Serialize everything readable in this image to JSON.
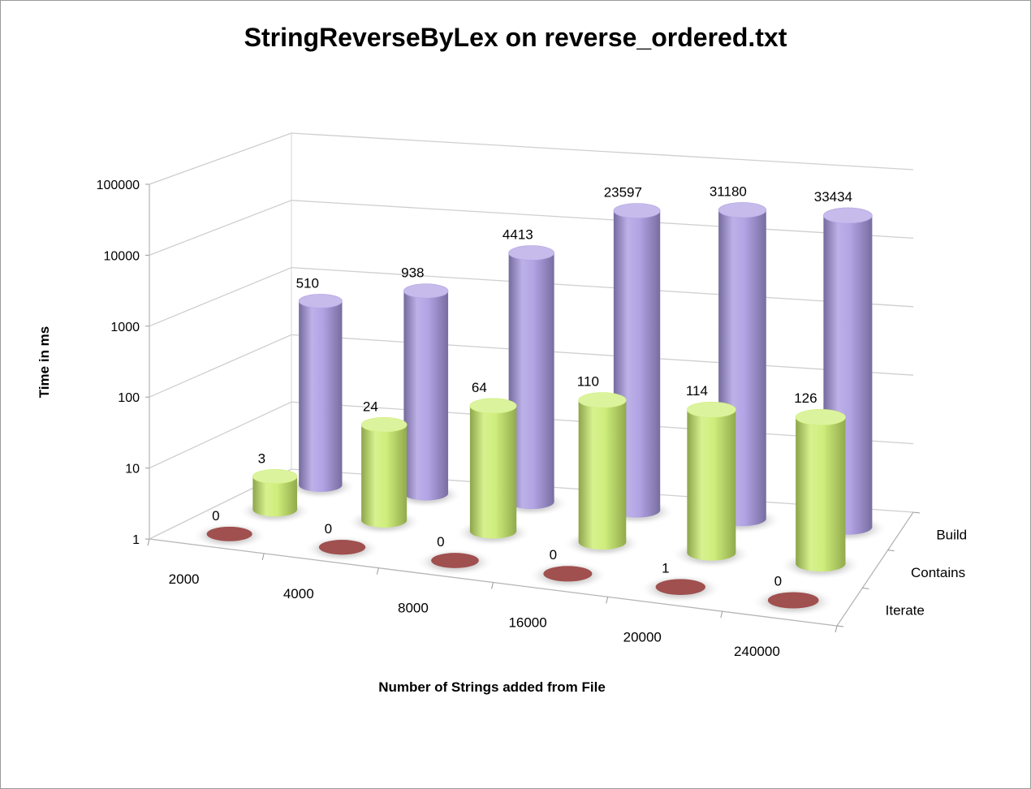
{
  "chart_data": {
    "type": "bar",
    "variant": "3d-cylinder",
    "title": "StringReverseByLex on reverse_ordered.txt",
    "xlabel": "Number of Strings added from File",
    "ylabel": "Time in ms",
    "scale": "log",
    "ylim": [
      1,
      100000
    ],
    "y_ticks": [
      "1",
      "10",
      "100",
      "1000",
      "10000",
      "100000"
    ],
    "categories": [
      "2000",
      "4000",
      "8000",
      "16000",
      "20000",
      "240000"
    ],
    "series": [
      {
        "name": "Iterate",
        "values": [
          0,
          0,
          0,
          0,
          1,
          0
        ],
        "color": "#a0504f"
      },
      {
        "name": "Contains",
        "values": [
          3,
          24,
          64,
          110,
          114,
          126
        ],
        "color": "#c9ec6a"
      },
      {
        "name": "Build",
        "values": [
          510,
          938,
          4413,
          23597,
          31180,
          33434
        ],
        "color": "#a797e0"
      }
    ],
    "grid": true
  }
}
